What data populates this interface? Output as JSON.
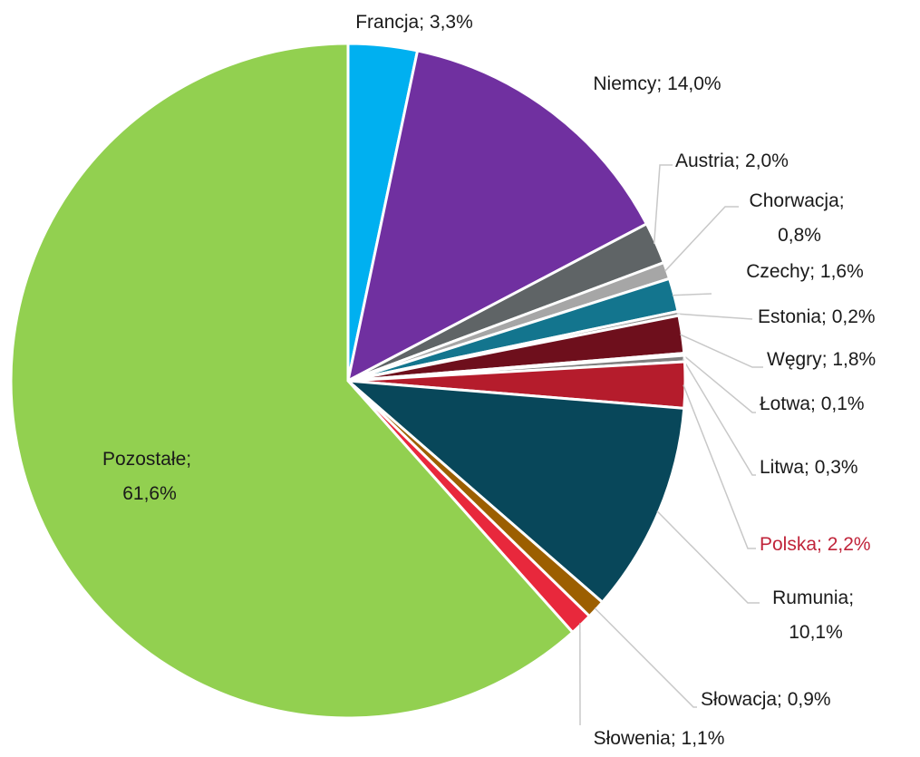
{
  "chart_data": {
    "type": "pie",
    "categories": [
      "Francja",
      "Niemcy",
      "Austria",
      "Chorwacja",
      "Czechy",
      "Estonia",
      "Węgry",
      "Łotwa",
      "Litwa",
      "Polska",
      "Rumunia",
      "Słowacja",
      "Słowenia",
      "Pozostałe"
    ],
    "values": [
      3.3,
      14.0,
      2.0,
      0.8,
      1.6,
      0.2,
      1.8,
      0.1,
      0.3,
      2.2,
      10.1,
      0.9,
      1.1,
      61.6
    ],
    "value_labels": [
      "3,3%",
      "14,0%",
      "2,0%",
      "0,8%",
      "1,6%",
      "0,2%",
      "1,8%",
      "0,1%",
      "0,3%",
      "2,2%",
      "10,1%",
      "0,9%",
      "1,1%",
      "61,6%"
    ],
    "label_separator": "; ",
    "colors": [
      "#00b0f0",
      "#7030a0",
      "#5f6466",
      "#a6a6a6",
      "#13758e",
      "#8c8c8c",
      "#6e0f1c",
      "#595959",
      "#808080",
      "#b51c2c",
      "#08475a",
      "#9c5f00",
      "#e8283c",
      "#92d050"
    ],
    "highlight_index": 9,
    "highlight_color": "#c0243a"
  }
}
